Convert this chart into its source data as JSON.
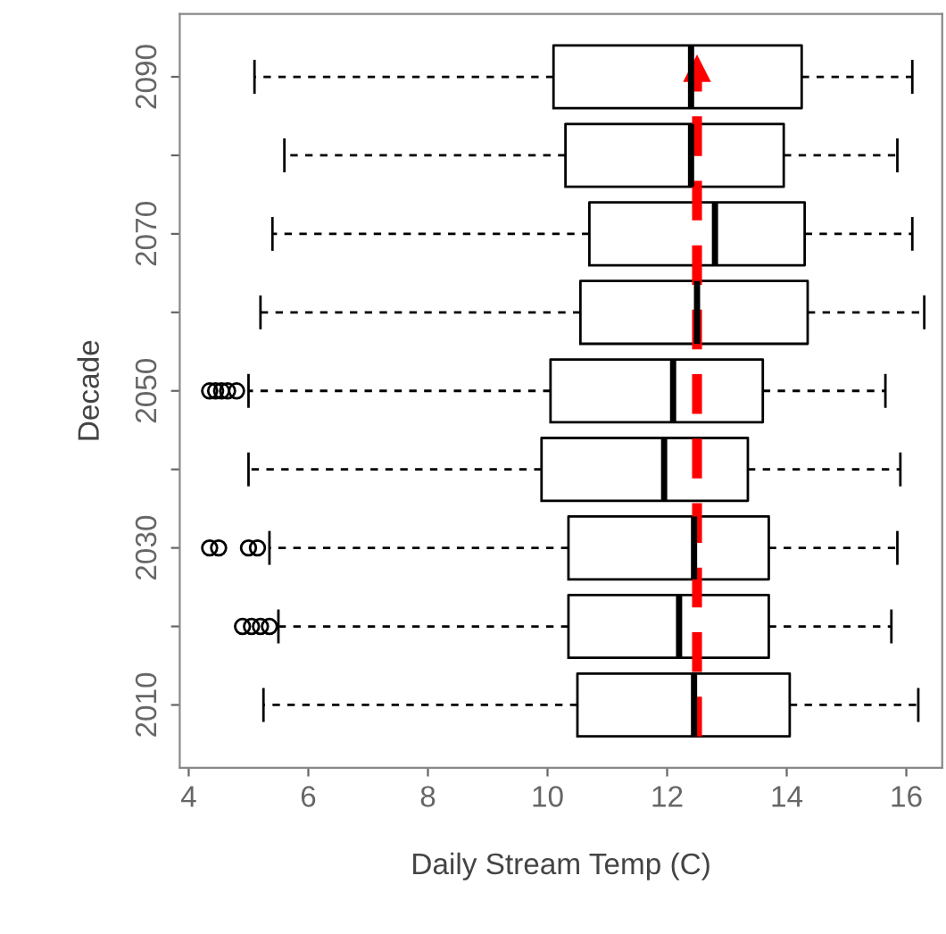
{
  "chart_data": {
    "type": "box",
    "orientation": "horizontal",
    "xlabel": "Daily Stream Temp (C)",
    "ylabel": "Decade",
    "categories": [
      "2090",
      null,
      "2070",
      null,
      "2050",
      null,
      "2030",
      null,
      "2010"
    ],
    "xlim": [
      3.85,
      16.6
    ],
    "xticks": [
      4,
      6,
      8,
      10,
      12,
      14,
      16
    ],
    "grid": false,
    "color": "#000000",
    "boxes": [
      {
        "low": 5.1,
        "q1": 10.1,
        "median": 12.4,
        "q3": 14.25,
        "high": 16.1
      },
      {
        "low": 5.6,
        "q1": 10.3,
        "median": 12.4,
        "q3": 13.95,
        "high": 15.85
      },
      {
        "low": 5.4,
        "q1": 10.7,
        "median": 12.8,
        "q3": 14.3,
        "high": 16.1
      },
      {
        "low": 5.2,
        "q1": 10.55,
        "median": 12.5,
        "q3": 14.35,
        "high": 16.3
      },
      {
        "low": 5.0,
        "q1": 10.05,
        "median": 12.1,
        "q3": 13.6,
        "high": 15.65,
        "outliers": [
          4.35,
          4.45,
          4.55,
          4.65,
          4.8
        ]
      },
      {
        "low": 5.0,
        "q1": 9.9,
        "median": 11.95,
        "q3": 13.35,
        "high": 15.9
      },
      {
        "low": 5.35,
        "q1": 10.35,
        "median": 12.45,
        "q3": 13.7,
        "high": 15.85,
        "outliers": [
          4.35,
          4.5,
          5.0,
          5.15
        ]
      },
      {
        "low": 5.5,
        "q1": 10.35,
        "median": 12.2,
        "q3": 13.7,
        "high": 15.75,
        "outliers": [
          4.9,
          5.05,
          5.2,
          5.35
        ]
      },
      {
        "low": 5.25,
        "q1": 10.5,
        "median": 12.45,
        "q3": 14.05,
        "high": 16.2
      }
    ],
    "ref_lines": [
      {
        "axis": "x",
        "value": 12.5,
        "color": "#ff0000",
        "line_style": "dashed"
      }
    ]
  }
}
